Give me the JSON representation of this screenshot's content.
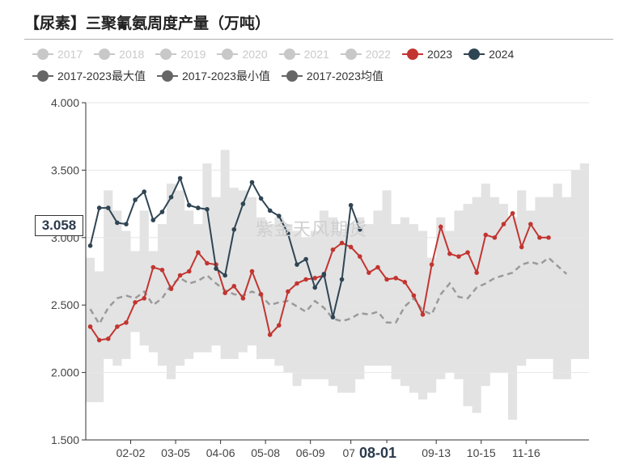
{
  "title": "【尿素】三聚氰氨周度产量（万吨）",
  "watermark": "紫金天风期货",
  "cursor": {
    "y_value": "3.058",
    "x_label": "08-01"
  },
  "legend": [
    {
      "label": "2017",
      "color": "#c8c8c8",
      "active": false
    },
    {
      "label": "2018",
      "color": "#c8c8c8",
      "active": false
    },
    {
      "label": "2019",
      "color": "#c8c8c8",
      "active": false
    },
    {
      "label": "2020",
      "color": "#c8c8c8",
      "active": false
    },
    {
      "label": "2021",
      "color": "#c8c8c8",
      "active": false
    },
    {
      "label": "2022",
      "color": "#c8c8c8",
      "active": false
    },
    {
      "label": "2023",
      "color": "#c23531",
      "active": true
    },
    {
      "label": "2024",
      "color": "#2f4554",
      "active": true
    },
    {
      "label": "2017-2023最大值",
      "color": "#666666",
      "active": true
    },
    {
      "label": "2017-2023最小值",
      "color": "#666666",
      "active": true
    },
    {
      "label": "2017-2023均值",
      "color": "#666666",
      "active": true
    }
  ],
  "chart_data": {
    "type": "line",
    "y_axis": {
      "min": 1.5,
      "max": 4.0,
      "ticks": [
        "1.500",
        "2.000",
        "2.500",
        "3.000",
        "3.500",
        "4.000"
      ]
    },
    "x_tick_labels": [
      "02-02",
      "03-05",
      "04-06",
      "05-08",
      "06-09",
      "07-",
      "08-01",
      "09-13",
      "10-15",
      "11-16"
    ],
    "x_tick_weeks": [
      5,
      10,
      15,
      20,
      25,
      29.5,
      33.5,
      39,
      44,
      49
    ],
    "weeks": 56,
    "grid": true,
    "series": [
      {
        "name": "2023",
        "color": "#c23531",
        "values": [
          2.34,
          2.24,
          2.25,
          2.34,
          2.37,
          2.52,
          2.55,
          2.78,
          2.76,
          2.62,
          2.72,
          2.75,
          2.89,
          2.81,
          2.8,
          2.59,
          2.64,
          2.55,
          2.75,
          2.58,
          2.28,
          2.35,
          2.6,
          2.66,
          2.69,
          2.7,
          2.72,
          2.91,
          2.96,
          2.93,
          2.86,
          2.74,
          2.78,
          2.69,
          2.7,
          2.67,
          2.57,
          2.43,
          2.8,
          3.08,
          2.88,
          2.86,
          2.89,
          2.74,
          3.02,
          3.0,
          3.1,
          3.18,
          2.93,
          3.1,
          3.0,
          3.0
        ]
      },
      {
        "name": "2024",
        "color": "#2f4554",
        "values": [
          2.94,
          3.22,
          3.22,
          3.11,
          3.1,
          3.28,
          3.34,
          3.13,
          3.19,
          3.3,
          3.44,
          3.24,
          3.22,
          3.21,
          2.77,
          2.72,
          3.06,
          3.25,
          3.41,
          3.29,
          3.2,
          3.16,
          3.03,
          2.8,
          2.84,
          2.63,
          2.73,
          2.41,
          2.69,
          3.24,
          3.06
        ]
      },
      {
        "name": "2017-2023均值",
        "color": "#9a9a9a",
        "values": [
          2.47,
          2.36,
          2.48,
          2.55,
          2.57,
          2.55,
          2.6,
          2.5,
          2.55,
          2.65,
          2.7,
          2.66,
          2.68,
          2.72,
          2.66,
          2.61,
          2.58,
          2.57,
          2.6,
          2.57,
          2.5,
          2.52,
          2.53,
          2.49,
          2.45,
          2.53,
          2.48,
          2.4,
          2.38,
          2.4,
          2.44,
          2.43,
          2.45,
          2.37,
          2.37,
          2.49,
          2.55,
          2.46,
          2.43,
          2.58,
          2.66,
          2.56,
          2.55,
          2.63,
          2.66,
          2.7,
          2.72,
          2.74,
          2.8,
          2.82,
          2.8,
          2.85,
          2.79,
          2.73
        ]
      },
      {
        "name": "2017-2023最大值",
        "color": "#666666",
        "values": [
          2.85,
          2.75,
          3.35,
          3.2,
          3.05,
          2.9,
          3.2,
          2.9,
          3.1,
          3.4,
          3.35,
          3.2,
          3.1,
          3.55,
          3.3,
          3.65,
          3.37,
          3.35,
          3.3,
          3.15,
          3.1,
          3.15,
          3.1,
          3.05,
          3.0,
          3.05,
          3.2,
          3.15,
          3.05,
          3.1,
          3.15,
          3.1,
          3.2,
          3.35,
          3.1,
          3.15,
          3.1,
          3.05,
          2.85,
          3.15,
          3.05,
          3.2,
          3.25,
          3.3,
          3.4,
          3.3,
          3.25,
          3.15,
          3.35,
          3.2,
          3.3,
          3.3,
          3.4,
          3.3,
          3.5,
          3.55
        ]
      },
      {
        "name": "2017-2023最小值",
        "color": "#666666",
        "values": [
          1.78,
          1.78,
          2.1,
          2.05,
          2.1,
          2.3,
          2.2,
          2.15,
          2.05,
          1.95,
          2.05,
          2.1,
          2.15,
          2.15,
          2.2,
          2.1,
          2.1,
          2.15,
          2.2,
          2.1,
          2.1,
          2.05,
          2.0,
          1.9,
          1.95,
          1.95,
          1.95,
          1.9,
          1.85,
          1.85,
          1.95,
          2.05,
          2.05,
          2.05,
          1.95,
          1.9,
          1.85,
          1.8,
          1.85,
          1.95,
          2.0,
          1.95,
          1.75,
          1.7,
          1.9,
          2.0,
          2.0,
          1.65,
          2.05,
          2.1,
          2.1,
          2.1,
          1.95,
          1.95,
          2.1,
          2.1
        ]
      }
    ]
  }
}
